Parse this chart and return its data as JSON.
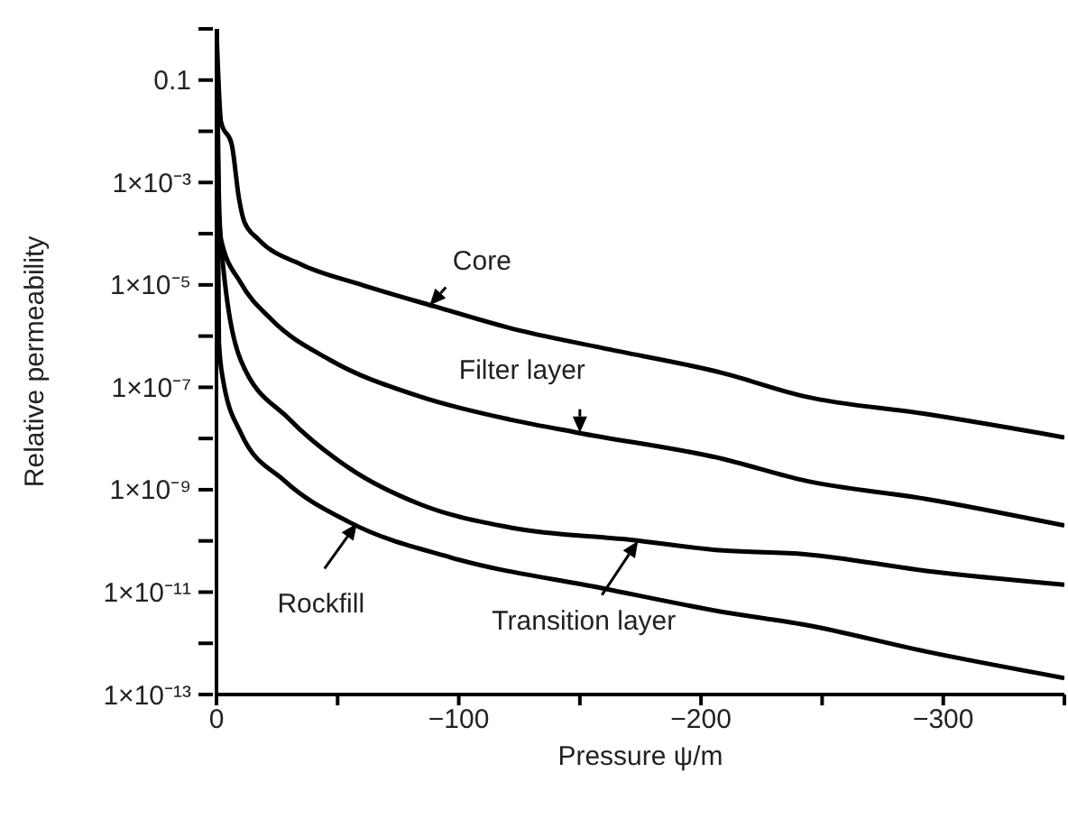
{
  "chart_data": {
    "type": "line",
    "xlabel": "Pressure ψ/m",
    "ylabel": "Relative permeability",
    "log": "y",
    "marker": "none",
    "line_style": "solid",
    "xlim": [
      0,
      -350
    ],
    "xticks": [
      0,
      {
        "value": -50,
        "label": null
      },
      {
        "value": -100,
        "label": "−100"
      },
      {
        "value": -150,
        "label": null
      },
      {
        "value": -200,
        "label": "−200"
      },
      {
        "value": -250,
        "label": null
      },
      {
        "value": -300,
        "label": "−300"
      },
      {
        "value": -350,
        "label": null
      }
    ],
    "ylim": [
      1e-13,
      1
    ],
    "yticks": [
      {
        "value": 1,
        "label": null
      },
      0.1,
      {
        "value": 0.01,
        "label": null
      },
      {
        "value": 0.001,
        "label": "1×10⁻³"
      },
      {
        "value": 0.0001,
        "label": null
      },
      {
        "value": 1e-05,
        "label": "1×10⁻⁵"
      },
      {
        "value": 1e-06,
        "label": null
      },
      {
        "value": 1e-07,
        "label": "1×10⁻⁷"
      },
      {
        "value": 1e-08,
        "label": null
      },
      {
        "value": 1e-09,
        "label": "1×10⁻⁹"
      },
      {
        "value": 1e-10,
        "label": null
      },
      {
        "value": 1e-11,
        "label": "1×10⁻¹¹"
      },
      {
        "value": 1e-12,
        "label": null
      },
      {
        "value": 1e-13,
        "label": "1×10⁻¹³"
      }
    ],
    "series": [
      {
        "color": "#000000",
        "x": [
          0,
          -1.9,
          -6.3,
          -9.3,
          -11.5,
          -17.5,
          -35,
          -60,
          -90,
          -122,
          -159,
          -209,
          -243,
          -293,
          -350
        ],
        "values": [
          1,
          0.015,
          0.0055,
          0.00048,
          0.00017,
          7.6e-05,
          2.5e-05,
          1e-05,
          3.8e-06,
          1.4e-06,
          5.9e-07,
          1.9e-07,
          6.6e-08,
          3e-08,
          1.05e-08
        ]
      },
      {
        "color": "#000000",
        "x": [
          0,
          -1,
          -1.9,
          -10,
          -22.7,
          -47,
          -84,
          -122,
          -149,
          -209,
          -243,
          -293,
          -350
        ],
        "values": [
          1,
          0.0005,
          7.6e-05,
          1.1e-05,
          2.1e-06,
          3.4e-07,
          6.6e-08,
          2.3e-08,
          1.3e-08,
          4e-09,
          1.5e-09,
          6.6e-10,
          2e-10
        ]
      },
      {
        "color": "#000000",
        "x": [
          0,
          -1,
          -10,
          -30,
          -55,
          -84,
          -122,
          -171,
          -209,
          -243,
          -293,
          -350
        ],
        "values": [
          1,
          0.0002,
          3.4e-07,
          2.4e-08,
          2.6e-09,
          5.2e-10,
          1.8e-10,
          1.05e-10,
          6.5e-11,
          5.5e-11,
          2.6e-11,
          1.4e-11
        ]
      },
      {
        "color": "#000000",
        "x": [
          0,
          -1,
          -2.6,
          -10,
          -28,
          -55,
          -97,
          -159,
          -209,
          -243,
          -293,
          -350
        ],
        "values": [
          1,
          7.6e-07,
          1.5e-07,
          1.3e-08,
          1.5e-09,
          2.3e-10,
          4.7e-11,
          1.2e-11,
          4.1e-12,
          2.3e-12,
          6.9e-13,
          2.1e-13
        ]
      }
    ],
    "annotations": [
      {
        "text": "Core",
        "x": -88,
        "y": 4e-06
      },
      {
        "text": "Filter layer",
        "x": -150,
        "y": 1.3e-08
      },
      {
        "text": "Rockfill",
        "x": -58,
        "y": 2.2e-10
      },
      {
        "text": "Transition layer",
        "x": -174,
        "y": 1e-10
      }
    ]
  }
}
